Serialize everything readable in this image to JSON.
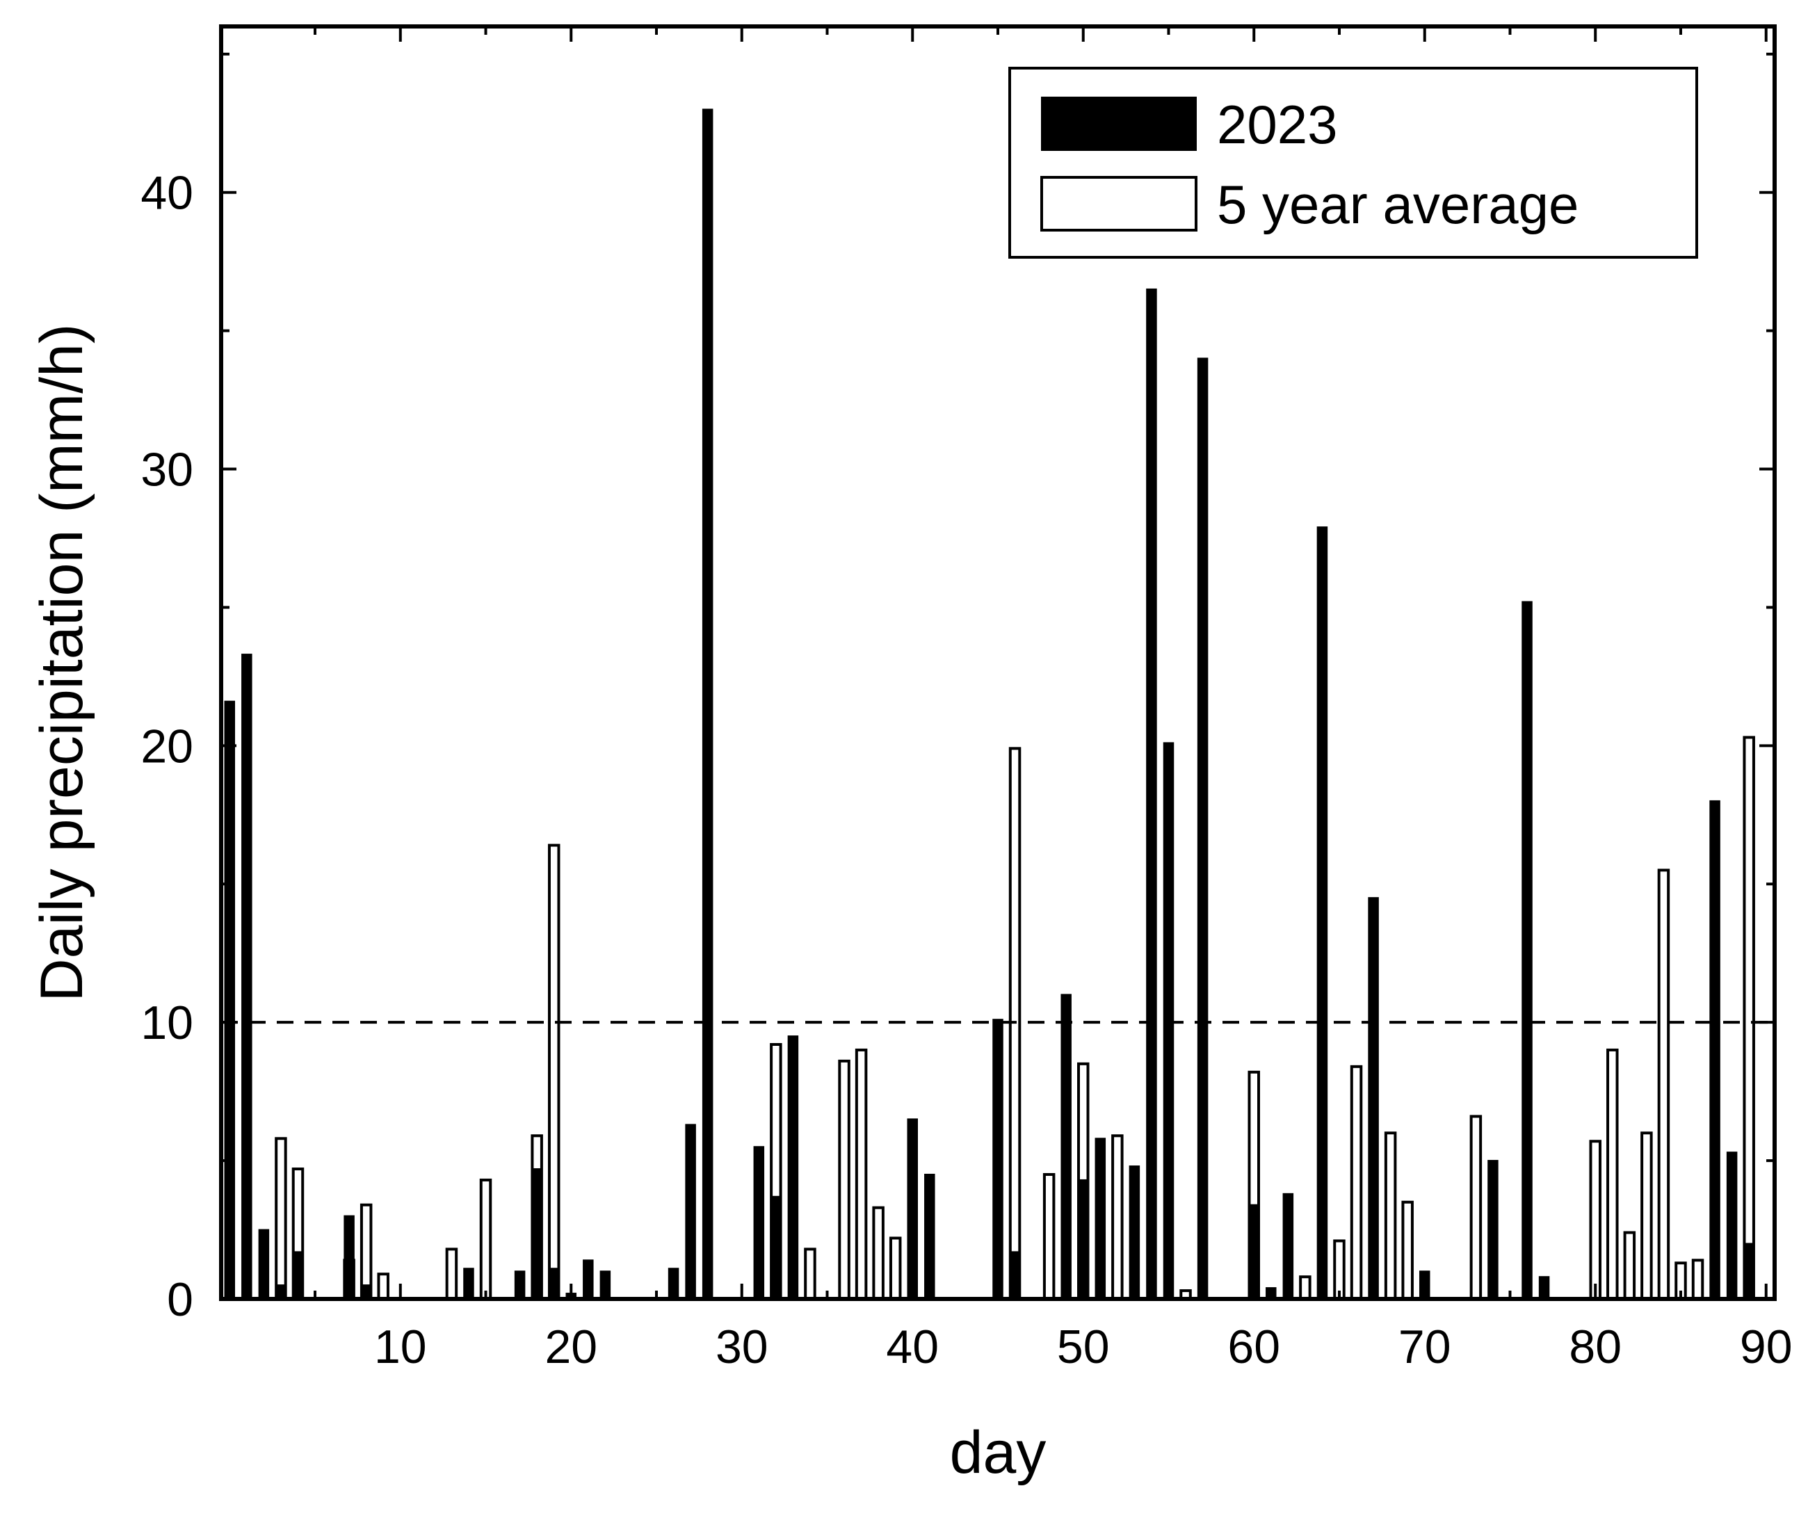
{
  "chart_data": {
    "type": "bar",
    "title": "",
    "xlabel": "day",
    "ylabel": "Daily precipitation (mm/h)",
    "xlim": [
      -0.5,
      90.5
    ],
    "ylim": [
      0,
      46
    ],
    "x_ticks": [
      10,
      20,
      30,
      40,
      50,
      60,
      70,
      80,
      90
    ],
    "y_ticks": [
      0,
      10,
      20,
      30,
      40
    ],
    "grid": false,
    "legend_position": "top-right",
    "reference_line": {
      "y": 10,
      "style": "dashed"
    },
    "series": [
      {
        "name": "2023",
        "style": "filled",
        "color": "#000000",
        "points": [
          [
            0,
            21.6
          ],
          [
            1,
            23.3
          ],
          [
            2,
            2.5
          ],
          [
            3,
            0.5
          ],
          [
            4,
            1.7
          ],
          [
            7,
            3.0
          ],
          [
            8,
            0.5
          ],
          [
            14,
            1.1
          ],
          [
            17,
            1.0
          ],
          [
            18,
            4.7
          ],
          [
            19,
            1.1
          ],
          [
            20,
            0.2
          ],
          [
            21,
            1.4
          ],
          [
            22,
            1.0
          ],
          [
            26,
            1.1
          ],
          [
            27,
            6.3
          ],
          [
            28,
            43.0
          ],
          [
            31,
            5.5
          ],
          [
            32,
            3.7
          ],
          [
            33,
            9.5
          ],
          [
            40,
            6.5
          ],
          [
            41,
            4.5
          ],
          [
            45,
            10.1
          ],
          [
            46,
            1.7
          ],
          [
            49,
            11.0
          ],
          [
            50,
            4.3
          ],
          [
            51,
            5.8
          ],
          [
            53,
            4.8
          ],
          [
            54,
            36.5
          ],
          [
            55,
            20.1
          ],
          [
            57,
            34.0
          ],
          [
            60,
            3.4
          ],
          [
            61,
            0.4
          ],
          [
            62,
            3.8
          ],
          [
            64,
            27.9
          ],
          [
            67,
            14.5
          ],
          [
            70,
            1.0
          ],
          [
            74,
            5.0
          ],
          [
            76,
            25.2
          ],
          [
            77,
            0.8
          ],
          [
            87,
            18.0
          ],
          [
            88,
            5.3
          ],
          [
            89,
            2.0
          ]
        ]
      },
      {
        "name": "5 year average",
        "style": "hollow",
        "color": "#ffffff",
        "points": [
          [
            3,
            5.8
          ],
          [
            4,
            4.7
          ],
          [
            7,
            1.4
          ],
          [
            8,
            3.4
          ],
          [
            9,
            0.9
          ],
          [
            13,
            1.8
          ],
          [
            15,
            4.3
          ],
          [
            18,
            5.9
          ],
          [
            19,
            16.4
          ],
          [
            32,
            9.2
          ],
          [
            34,
            1.8
          ],
          [
            36,
            8.6
          ],
          [
            37,
            9.0
          ],
          [
            38,
            3.3
          ],
          [
            39,
            2.2
          ],
          [
            46,
            19.9
          ],
          [
            48,
            4.5
          ],
          [
            50,
            8.5
          ],
          [
            52,
            5.9
          ],
          [
            56,
            0.3
          ],
          [
            60,
            8.2
          ],
          [
            63,
            0.8
          ],
          [
            65,
            2.1
          ],
          [
            66,
            8.4
          ],
          [
            68,
            6.0
          ],
          [
            69,
            3.5
          ],
          [
            73,
            6.6
          ],
          [
            80,
            5.7
          ],
          [
            81,
            9.0
          ],
          [
            82,
            2.4
          ],
          [
            83,
            6.0
          ],
          [
            84,
            15.5
          ],
          [
            85,
            1.3
          ],
          [
            86,
            1.4
          ],
          [
            89,
            20.3
          ]
        ]
      }
    ]
  }
}
